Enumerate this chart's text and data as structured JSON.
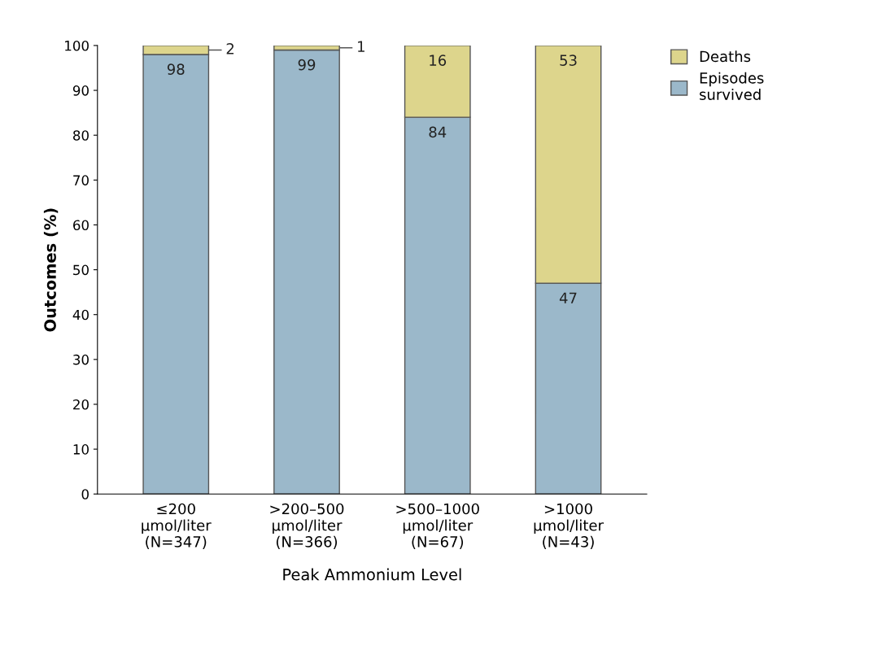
{
  "chart_data": {
    "type": "bar",
    "stacked": true,
    "xlabel": "Peak Ammonium Level",
    "ylabel": "Outcomes (%)",
    "categories": [
      "≤200\nμmol/liter\n(N=347)",
      ">200–500\nμmol/liter\n(N=366)",
      ">500–1000\nμmol/liter\n(N=67)",
      ">1000\nμmol/liter\n(N=43)"
    ],
    "series": [
      {
        "name": "Episodes\nsurvived",
        "color": "#9bb8ca",
        "values": [
          98,
          99,
          84,
          47
        ]
      },
      {
        "name": "Deaths",
        "color": "#ddd58c",
        "values": [
          2,
          1,
          16,
          53
        ]
      }
    ],
    "ylim": [
      0,
      100
    ],
    "yticks": [
      0,
      10,
      20,
      30,
      40,
      50,
      60,
      70,
      80,
      90,
      100
    ],
    "data_labels": true,
    "grid": false,
    "legend": "top right"
  }
}
